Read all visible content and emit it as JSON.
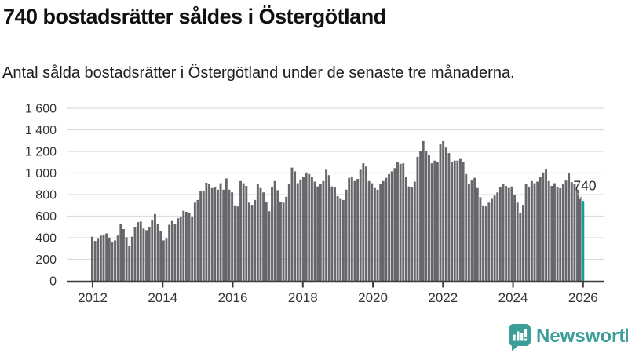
{
  "header": {
    "title": "740 bostadsrätter såldes i Östergötland",
    "subtitle": "Antal sålda bostadsrätter i Östergötland under de senaste tre månaderna."
  },
  "chart_data": {
    "type": "bar",
    "title": "740 bostadsrätter såldes i Östergötland",
    "xlabel": "",
    "ylabel": "",
    "frequency": "monthly",
    "x_start": "2012-01",
    "x_end": "2026-01",
    "ylim": [
      0,
      1600
    ],
    "grid": true,
    "legend": "none",
    "y_axis": {
      "ticks": [
        0,
        200,
        400,
        600,
        800,
        1000,
        1200,
        1400,
        1600
      ],
      "labels": [
        "0",
        "200",
        "400",
        "600",
        "800",
        "1 000",
        "1 200",
        "1 400",
        "1 600"
      ]
    },
    "x_axis": {
      "ticks": [
        2012,
        2014,
        2016,
        2018,
        2020,
        2022,
        2024,
        2026
      ],
      "labels": [
        "2012",
        "2014",
        "2016",
        "2018",
        "2020",
        "2022",
        "2024",
        "2026"
      ]
    },
    "values": [
      410,
      370,
      390,
      420,
      430,
      440,
      400,
      360,
      375,
      420,
      525,
      480,
      405,
      320,
      410,
      495,
      545,
      550,
      485,
      470,
      495,
      560,
      620,
      530,
      460,
      375,
      390,
      520,
      555,
      530,
      580,
      590,
      650,
      640,
      630,
      590,
      725,
      750,
      835,
      835,
      910,
      900,
      860,
      870,
      845,
      905,
      845,
      950,
      845,
      820,
      700,
      690,
      925,
      905,
      880,
      725,
      705,
      750,
      900,
      860,
      820,
      735,
      645,
      870,
      925,
      840,
      735,
      725,
      780,
      895,
      1050,
      1015,
      905,
      940,
      965,
      1005,
      990,
      965,
      920,
      875,
      900,
      925,
      1030,
      980,
      875,
      870,
      785,
      760,
      750,
      845,
      955,
      965,
      925,
      945,
      1030,
      1090,
      1060,
      925,
      905,
      860,
      845,
      895,
      925,
      955,
      990,
      1015,
      1045,
      1100,
      1085,
      1090,
      965,
      875,
      865,
      920,
      1150,
      1205,
      1295,
      1205,
      1165,
      1090,
      1115,
      1100,
      1265,
      1295,
      1235,
      1185,
      1100,
      1115,
      1115,
      1130,
      1100,
      990,
      900,
      930,
      955,
      860,
      775,
      700,
      690,
      725,
      760,
      790,
      820,
      865,
      895,
      880,
      860,
      875,
      800,
      725,
      630,
      705,
      895,
      870,
      925,
      905,
      920,
      965,
      1005,
      1040,
      925,
      880,
      905,
      870,
      858,
      895,
      930,
      1000,
      915,
      900,
      845,
      760,
      740
    ],
    "highlight": {
      "position": "last",
      "value": 740,
      "label": "740"
    },
    "colors": {
      "bar": "#67676b",
      "highlight": "#12a09e",
      "grid": "#dcdcdc",
      "axis": "#3d3d3d",
      "text": "#333333"
    }
  },
  "footer": {
    "brand": "Newsworthy"
  }
}
